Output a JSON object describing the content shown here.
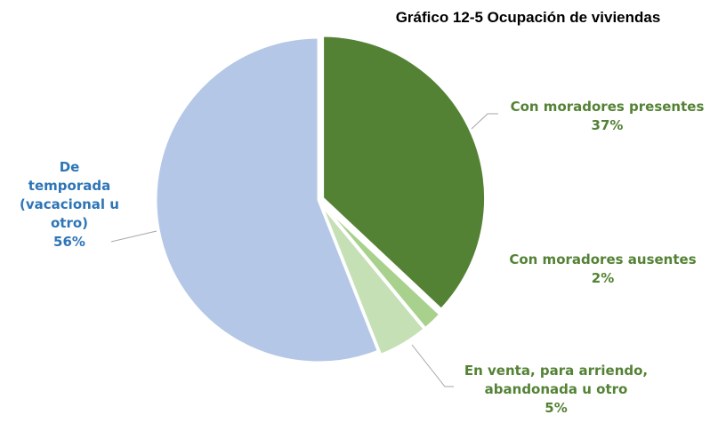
{
  "chart_data": {
    "type": "pie",
    "title": "Gráfico 12-5 Ocupación de viviendas",
    "categories": [
      "Con moradores presentes",
      "Con moradores ausentes",
      "En venta, para arriendo, abandonada u otro",
      "De temporada (vacacional u otro)"
    ],
    "values": [
      37,
      2,
      5,
      56
    ],
    "value_labels": [
      "37%",
      "2%",
      "5%",
      "56%"
    ],
    "colors": [
      "#548235",
      "#a9d18e",
      "#c5e0b4",
      "#b4c7e7"
    ]
  }
}
